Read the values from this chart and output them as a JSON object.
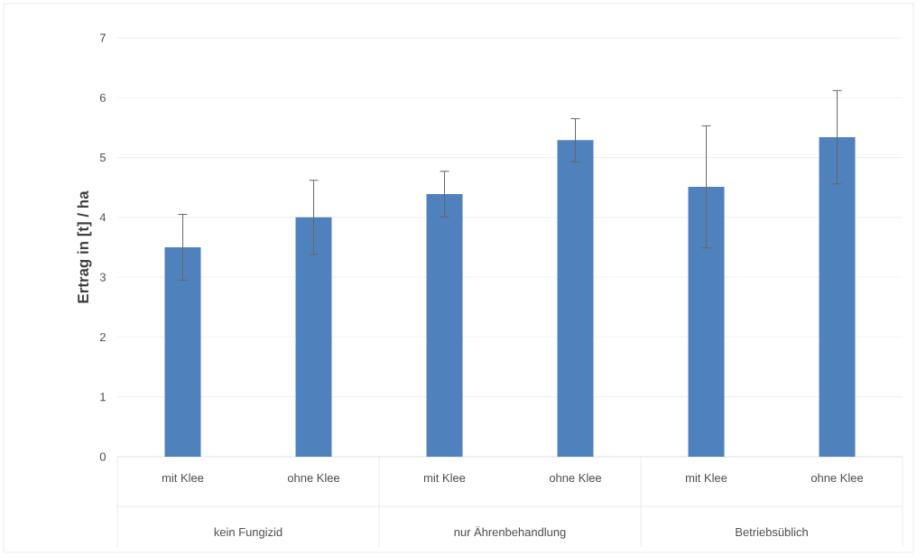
{
  "chart_data": {
    "type": "bar",
    "ylabel": "Ertrag in [t] / ha",
    "categories": [
      "mit Klee",
      "ohne Klee",
      "mit Klee",
      "ohne Klee",
      "mit Klee",
      "ohne Klee"
    ],
    "values": [
      3.5,
      4.0,
      4.39,
      5.29,
      4.51,
      5.34
    ],
    "errors": [
      0.55,
      0.62,
      0.38,
      0.36,
      1.02,
      0.78
    ],
    "color": "#4f81bd",
    "ylim": [
      0,
      7
    ],
    "yticks": [
      0,
      1,
      2,
      3,
      4,
      5,
      6,
      7
    ],
    "grid": "y",
    "annotations": [
      "kein Fungizid",
      "nur Ährenbehandlung",
      "Betriebsüblich"
    ]
  }
}
